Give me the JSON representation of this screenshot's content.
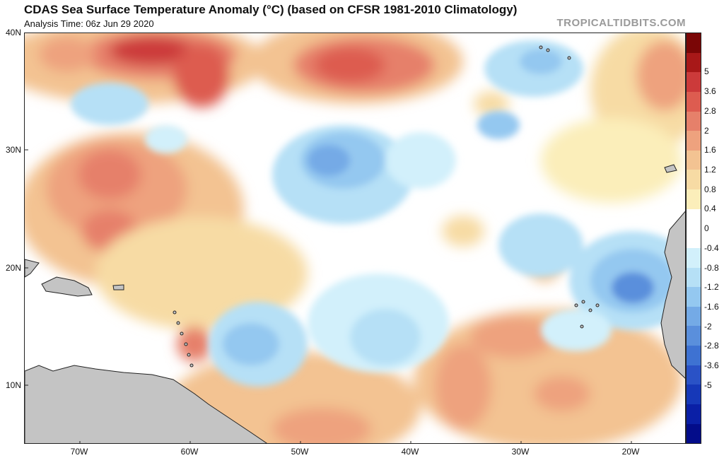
{
  "header": {
    "title": "CDAS Sea Surface Temperature Anomaly (°C) (based on CFSR 1981-2010 Climatology)",
    "analysis_time": "Analysis Time: 06z Jun 29 2020",
    "credit": "TROPICALTIDBITS.COM"
  },
  "map": {
    "region": "Tropical / subtropical North Atlantic",
    "lat_labels": [
      "40N",
      "30N",
      "20N",
      "10N"
    ],
    "lon_labels": [
      "70W",
      "60W",
      "50W",
      "40W",
      "30W",
      "20W"
    ],
    "land_color": "#c4c4c4",
    "coast_color": "#222222"
  },
  "colorbar": {
    "ticks": [
      "5",
      "3.6",
      "2.8",
      "2",
      "1.6",
      "1.2",
      "0.8",
      "0.4",
      "0",
      "-0.4",
      "-0.8",
      "-1.2",
      "-1.6",
      "-2",
      "-2.8",
      "-3.6",
      "-5"
    ],
    "colors": [
      "#7a0606",
      "#a81818",
      "#cc3a3a",
      "#dd5c50",
      "#e6806a",
      "#eea27e",
      "#f3c392",
      "#f7dba4",
      "#fbeeba",
      "#ffffff",
      "#ffffff",
      "#d2f0fb",
      "#b6e0f6",
      "#94c8f0",
      "#74aae6",
      "#5a8fdc",
      "#3e72d2",
      "#2a52c6",
      "#1638b8",
      "#0a1fa6",
      "#030c8a"
    ]
  }
}
